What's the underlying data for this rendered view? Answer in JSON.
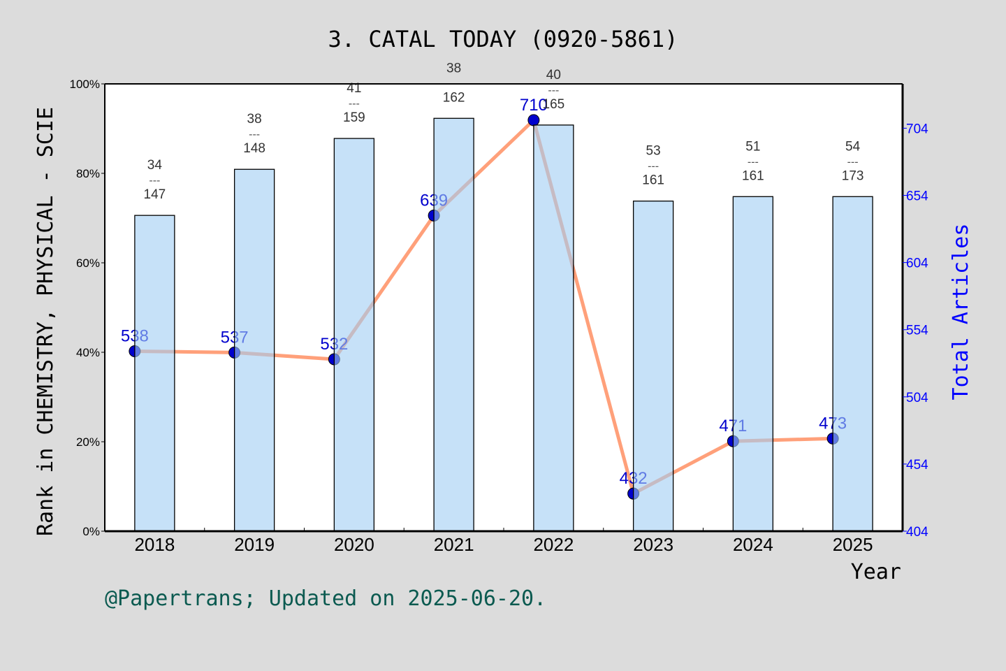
{
  "chart_data": {
    "type": "bar+line",
    "title": "3. CATAL TODAY (0920-5861)",
    "xlabel": "Year",
    "ylabel_left": "Rank in CHEMISTRY, PHYSICAL - SCIE",
    "ylabel_right": "Total Articles",
    "footer": "@Papertrans; Updated on 2025-06-20.",
    "categories": [
      "2018",
      "2019",
      "2020",
      "2021",
      "2022",
      "2023",
      "2024",
      "2025"
    ],
    "left_ylim": [
      0,
      100
    ],
    "left_ticks": [
      "0%",
      "20%",
      "40%",
      "60%",
      "80%",
      "100%"
    ],
    "right_ylim": [
      404,
      737
    ],
    "right_ticks": [
      "404",
      "454",
      "504",
      "554",
      "604",
      "654",
      "704"
    ],
    "bars": {
      "values": [
        70.6,
        80.9,
        87.8,
        92.3,
        90.8,
        73.8,
        74.8,
        74.8
      ],
      "rank": [
        "34",
        "38",
        "41",
        "38",
        "40",
        "53",
        "51",
        "54"
      ],
      "total": [
        "147",
        "148",
        "159",
        "162",
        "165",
        "161",
        "161",
        "173"
      ],
      "separator": "---",
      "color": "#c5e0f7"
    },
    "line": {
      "values": [
        538,
        537,
        532,
        639,
        710,
        432,
        471,
        473
      ],
      "labels": [
        "538",
        "537",
        "532",
        "639",
        "710",
        "432",
        "471",
        "473"
      ],
      "color": "#ffa07a",
      "marker_color": "#0000cd"
    },
    "colors": {
      "right_axis": "#0000ff",
      "footer": "#0b5a50"
    }
  }
}
